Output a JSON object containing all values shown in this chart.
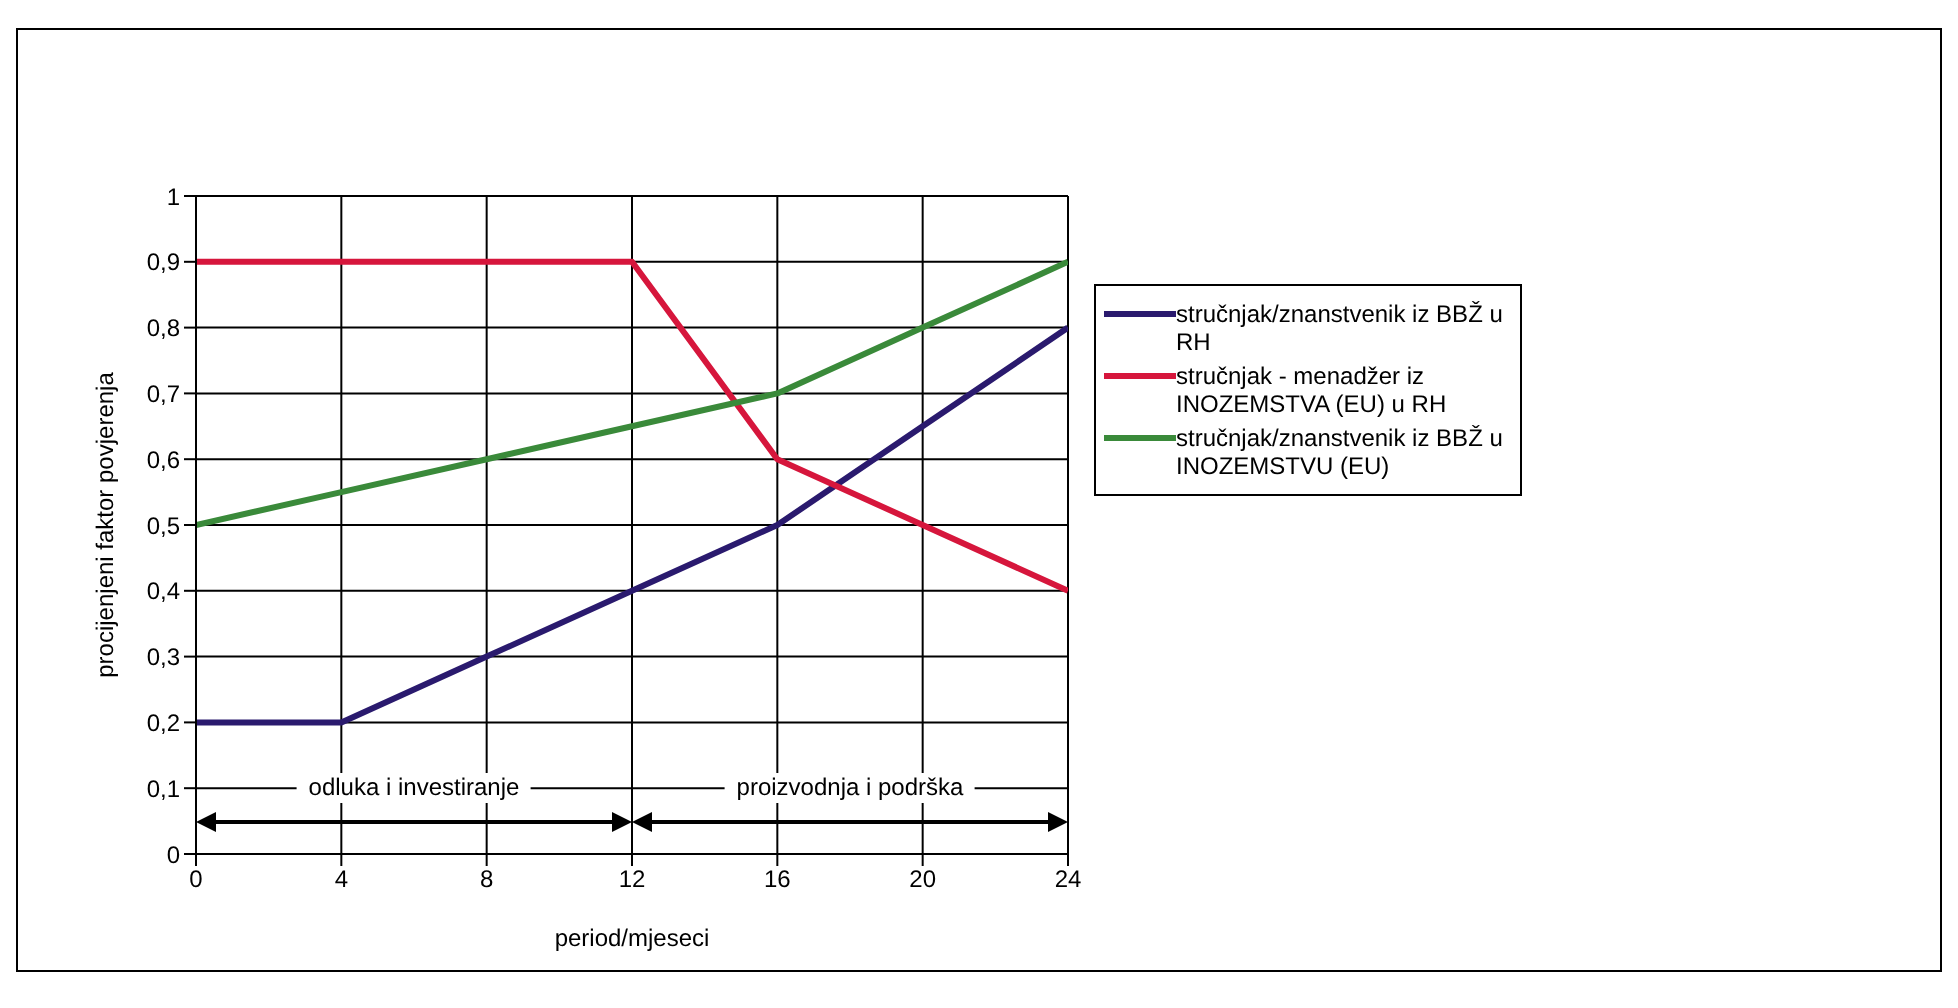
{
  "chart_data": {
    "type": "line",
    "xlabel": "period/mjeseci",
    "ylabel": "procijenjeni faktor povjerenja",
    "x": [
      0,
      4,
      8,
      12,
      16,
      20,
      24
    ],
    "series": [
      {
        "name": "stručnjak/znanstvenik iz BBŽ u RH",
        "color": "#2a1a6e",
        "values": [
          0.2,
          0.2,
          0.3,
          0.4,
          0.5,
          0.65,
          0.8
        ]
      },
      {
        "name": "stručnjak - menadžer iz INOZEMSTVA (EU) u RH",
        "color": "#d6163c",
        "values": [
          0.9,
          0.9,
          0.9,
          0.9,
          0.6,
          0.5,
          0.4
        ]
      },
      {
        "name": "stručnjak/znanstvenik iz BBŽ u INOZEMSTVU (EU)",
        "color": "#3a8a3a",
        "values": [
          0.5,
          0.55,
          0.6,
          0.65,
          0.7,
          0.8,
          0.9
        ]
      }
    ],
    "xlim": [
      0,
      24
    ],
    "xticks": [
      0,
      4,
      8,
      12,
      16,
      20,
      24
    ],
    "ylim": [
      0,
      1
    ],
    "yticks": [
      0,
      {
        "value": 0.1,
        "label": "0,1"
      },
      {
        "value": 0.2,
        "label": "0,2"
      },
      {
        "value": 0.3,
        "label": "0,3"
      },
      {
        "value": 0.4,
        "label": "0,4"
      },
      {
        "value": 0.5,
        "label": "0,5"
      },
      {
        "value": 0.6,
        "label": "0,6"
      },
      {
        "value": 0.7,
        "label": "0,7"
      },
      {
        "value": 0.8,
        "label": "0,8"
      },
      {
        "value": 0.9,
        "label": "0,9"
      },
      1
    ],
    "grid": true,
    "legend": "right",
    "marker": "none",
    "line_style": "solid",
    "annotations": [
      "odluka i investiranje",
      "proizvodnja i podrška"
    ]
  }
}
